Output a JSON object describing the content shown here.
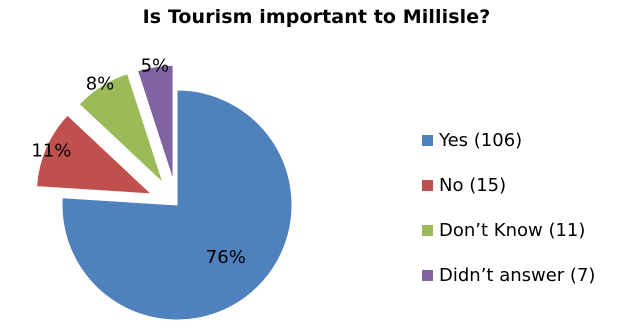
{
  "chart_data": {
    "type": "pie",
    "title": "Is Tourism important to Millisle?",
    "series": [
      {
        "name": "Yes (106)",
        "value": 76,
        "label": "76%",
        "color": "#4F81BD"
      },
      {
        "name": "No (15)",
        "value": 11,
        "label": "11%",
        "color": "#C0504D"
      },
      {
        "name": "Don’t Know (11)",
        "value": 8,
        "label": "8%",
        "color": "#9BBB59"
      },
      {
        "name": "Didn’t answer (7)",
        "value": 5,
        "label": "5%",
        "color": "#8064A2"
      }
    ],
    "exploded": true,
    "legend": "right"
  }
}
